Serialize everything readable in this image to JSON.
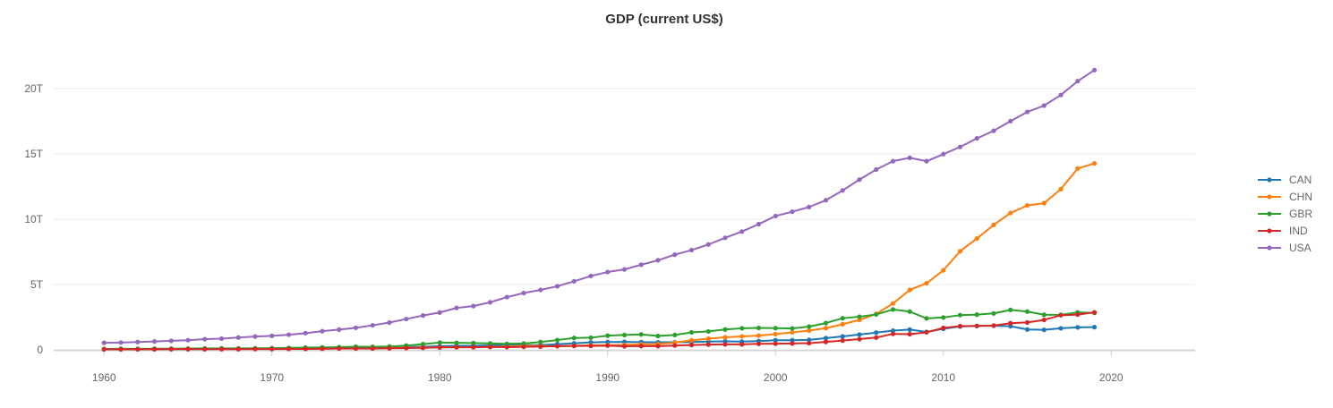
{
  "chart_data": {
    "type": "line",
    "title": "GDP (current US$)",
    "xlabel": "",
    "ylabel": "",
    "xlim": [
      1957,
      2025
    ],
    "ylim": [
      0,
      22
    ],
    "x_ticks": [
      1960,
      1970,
      1980,
      1990,
      2000,
      2010,
      2020
    ],
    "x_tick_labels": [
      "1960",
      "1970",
      "1980",
      "1990",
      "2000",
      "2010",
      "2020"
    ],
    "y_ticks": [
      0,
      5,
      10,
      15,
      20
    ],
    "y_tick_labels": [
      "0",
      "5T",
      "10T",
      "15T",
      "20T"
    ],
    "y_unit": "trillion US$",
    "grid": "horizontal",
    "legend_position": "right",
    "x": [
      1960,
      1961,
      1962,
      1963,
      1964,
      1965,
      1966,
      1967,
      1968,
      1969,
      1970,
      1971,
      1972,
      1973,
      1974,
      1975,
      1976,
      1977,
      1978,
      1979,
      1980,
      1981,
      1982,
      1983,
      1984,
      1985,
      1986,
      1987,
      1988,
      1989,
      1990,
      1991,
      1992,
      1993,
      1994,
      1995,
      1996,
      1997,
      1998,
      1999,
      2000,
      2001,
      2002,
      2003,
      2004,
      2005,
      2006,
      2007,
      2008,
      2009,
      2010,
      2011,
      2012,
      2013,
      2014,
      2015,
      2016,
      2017,
      2018,
      2019
    ],
    "series": [
      {
        "name": "CAN",
        "color": "#1f77b4",
        "values": [
          0.04,
          0.04,
          0.04,
          0.05,
          0.05,
          0.05,
          0.06,
          0.07,
          0.07,
          0.08,
          0.09,
          0.1,
          0.11,
          0.13,
          0.16,
          0.17,
          0.21,
          0.21,
          0.22,
          0.24,
          0.27,
          0.31,
          0.31,
          0.34,
          0.35,
          0.36,
          0.37,
          0.43,
          0.5,
          0.57,
          0.6,
          0.61,
          0.59,
          0.58,
          0.58,
          0.6,
          0.63,
          0.65,
          0.63,
          0.67,
          0.74,
          0.74,
          0.76,
          0.9,
          1.03,
          1.17,
          1.32,
          1.47,
          1.55,
          1.37,
          1.61,
          1.79,
          1.83,
          1.85,
          1.81,
          1.56,
          1.53,
          1.65,
          1.72,
          1.74
        ]
      },
      {
        "name": "CHN",
        "color": "#ff7f0e",
        "values": [
          0.06,
          0.05,
          0.05,
          0.05,
          0.06,
          0.07,
          0.08,
          0.07,
          0.07,
          0.08,
          0.09,
          0.1,
          0.11,
          0.14,
          0.14,
          0.16,
          0.15,
          0.17,
          0.15,
          0.18,
          0.19,
          0.2,
          0.2,
          0.23,
          0.26,
          0.31,
          0.3,
          0.27,
          0.31,
          0.35,
          0.36,
          0.38,
          0.43,
          0.44,
          0.56,
          0.73,
          0.86,
          0.96,
          1.03,
          1.09,
          1.21,
          1.34,
          1.47,
          1.66,
          1.96,
          2.29,
          2.75,
          3.55,
          4.59,
          5.1,
          6.09,
          7.55,
          8.53,
          9.57,
          10.48,
          11.06,
          11.23,
          12.31,
          13.89,
          14.28
        ]
      },
      {
        "name": "GBR",
        "color": "#2ca02c",
        "values": [
          0.07,
          0.08,
          0.08,
          0.09,
          0.09,
          0.1,
          0.11,
          0.11,
          0.11,
          0.12,
          0.13,
          0.15,
          0.17,
          0.19,
          0.21,
          0.24,
          0.23,
          0.26,
          0.33,
          0.44,
          0.56,
          0.54,
          0.52,
          0.49,
          0.46,
          0.49,
          0.6,
          0.75,
          0.91,
          0.93,
          1.09,
          1.14,
          1.18,
          1.06,
          1.14,
          1.34,
          1.41,
          1.56,
          1.65,
          1.68,
          1.66,
          1.64,
          1.78,
          2.05,
          2.42,
          2.54,
          2.71,
          3.09,
          2.93,
          2.41,
          2.48,
          2.66,
          2.7,
          2.79,
          3.06,
          2.93,
          2.69,
          2.68,
          2.87,
          2.83
        ]
      },
      {
        "name": "IND",
        "color": "#d62728",
        "values": [
          0.04,
          0.04,
          0.04,
          0.05,
          0.06,
          0.06,
          0.05,
          0.05,
          0.05,
          0.06,
          0.06,
          0.07,
          0.07,
          0.08,
          0.1,
          0.1,
          0.1,
          0.12,
          0.14,
          0.15,
          0.19,
          0.2,
          0.2,
          0.22,
          0.21,
          0.23,
          0.25,
          0.28,
          0.3,
          0.3,
          0.32,
          0.27,
          0.29,
          0.28,
          0.33,
          0.37,
          0.4,
          0.42,
          0.42,
          0.46,
          0.47,
          0.49,
          0.51,
          0.61,
          0.71,
          0.82,
          0.94,
          1.22,
          1.2,
          1.34,
          1.68,
          1.82,
          1.83,
          1.86,
          2.04,
          2.1,
          2.29,
          2.65,
          2.7,
          2.87
        ]
      },
      {
        "name": "USA",
        "color": "#9467bd",
        "values": [
          0.54,
          0.56,
          0.6,
          0.64,
          0.69,
          0.74,
          0.82,
          0.86,
          0.94,
          1.02,
          1.07,
          1.16,
          1.28,
          1.43,
          1.55,
          1.69,
          1.88,
          2.09,
          2.36,
          2.63,
          2.86,
          3.21,
          3.35,
          3.64,
          4.04,
          4.35,
          4.59,
          4.87,
          5.25,
          5.66,
          5.96,
          6.16,
          6.52,
          6.86,
          7.29,
          7.64,
          8.07,
          8.58,
          9.06,
          9.63,
          10.25,
          10.58,
          10.94,
          11.46,
          12.21,
          13.04,
          13.81,
          14.45,
          14.71,
          14.45,
          14.99,
          15.54,
          16.2,
          16.78,
          17.52,
          18.22,
          18.71,
          19.52,
          20.58,
          21.43
        ]
      }
    ]
  }
}
